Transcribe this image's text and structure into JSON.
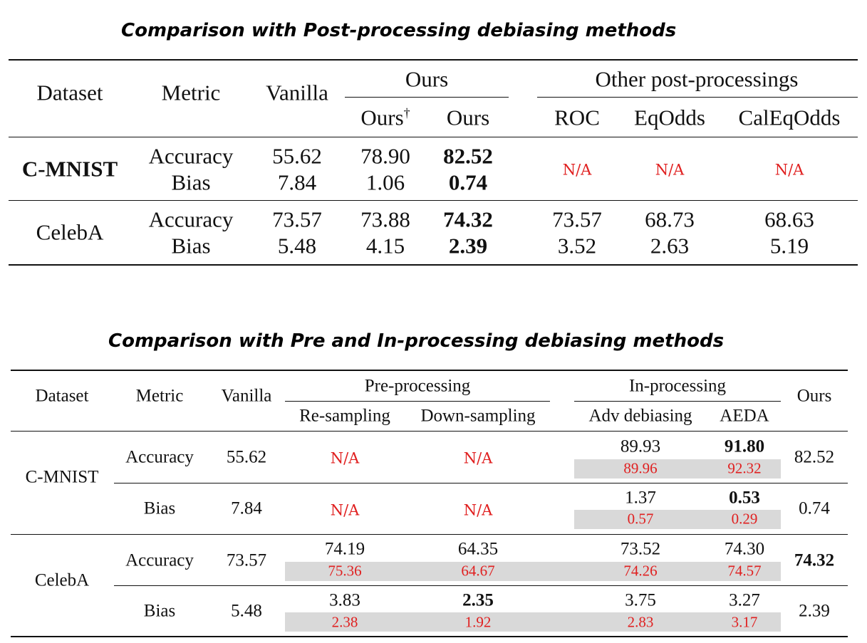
{
  "table1": {
    "title": "Comparison with Post-processing debiasing methods",
    "headers": {
      "dataset": "Dataset",
      "metric": "Metric",
      "vanilla": "Vanilla",
      "ours_group": "Ours",
      "ours_dagger": "Ours",
      "dagger": "†",
      "ours": "Ours",
      "other_group": "Other post-processings",
      "roc": "ROC",
      "eqodds": "EqOdds",
      "caleqodds": "CalEqOdds"
    },
    "rows": [
      {
        "dataset": "C-MNIST",
        "metric_acc": "Accuracy",
        "metric_bias": "Bias",
        "vanilla_acc": "55.62",
        "vanilla_bias": "7.84",
        "ours_dagger_acc": "78.90",
        "ours_dagger_bias": "1.06",
        "ours_acc": "82.52",
        "ours_bias": "0.74",
        "roc": "N/A",
        "eqodds": "N/A",
        "caleqodds": "N/A"
      },
      {
        "dataset": "CelebA",
        "metric_acc": "Accuracy",
        "metric_bias": "Bias",
        "vanilla_acc": "73.57",
        "vanilla_bias": "5.48",
        "ours_dagger_acc": "73.88",
        "ours_dagger_bias": "4.15",
        "ours_acc": "74.32",
        "ours_bias": "2.39",
        "roc_acc": "73.57",
        "roc_bias": "3.52",
        "eqodds_acc": "68.73",
        "eqodds_bias": "2.63",
        "caleqodds_acc": "68.63",
        "caleqodds_bias": "5.19"
      }
    ]
  },
  "table2": {
    "title": "Comparison with Pre and In-processing debiasing methods",
    "headers": {
      "dataset": "Dataset",
      "metric": "Metric",
      "vanilla": "Vanilla",
      "pre_group": "Pre-processing",
      "resampling": "Re-sampling",
      "downsampling": "Down-sampling",
      "in_group": "In-processing",
      "adv": "Adv debiasing",
      "aeda": "AEDA",
      "ours": "Ours"
    },
    "rows": {
      "cmnist": {
        "dataset": "C-MNIST",
        "acc": {
          "metric": "Accuracy",
          "vanilla": "55.62",
          "resampling": "N/A",
          "downsampling": "N/A",
          "adv": "89.93",
          "adv_red": "89.96",
          "aeda": "91.80",
          "aeda_red": "92.32",
          "ours": "82.52"
        },
        "bias": {
          "metric": "Bias",
          "vanilla": "7.84",
          "resampling": "N/A",
          "downsampling": "N/A",
          "adv": "1.37",
          "adv_red": "0.57",
          "aeda": "0.53",
          "aeda_red": "0.29",
          "ours": "0.74"
        }
      },
      "celeba": {
        "dataset": "CelebA",
        "acc": {
          "metric": "Accuracy",
          "vanilla": "73.57",
          "resampling": "74.19",
          "resampling_red": "75.36",
          "downsampling": "64.35",
          "downsampling_red": "64.67",
          "adv": "73.52",
          "adv_red": "74.26",
          "aeda": "74.30",
          "aeda_red": "74.57",
          "ours": "74.32"
        },
        "bias": {
          "metric": "Bias",
          "vanilla": "5.48",
          "resampling": "3.83",
          "resampling_red": "2.38",
          "downsampling": "2.35",
          "downsampling_red": "1.92",
          "adv": "3.75",
          "adv_red": "2.83",
          "aeda": "3.27",
          "aeda_red": "3.17",
          "ours": "2.39"
        }
      }
    }
  },
  "colors": {
    "red": "#e02020",
    "grey": "#d9d9d9"
  }
}
